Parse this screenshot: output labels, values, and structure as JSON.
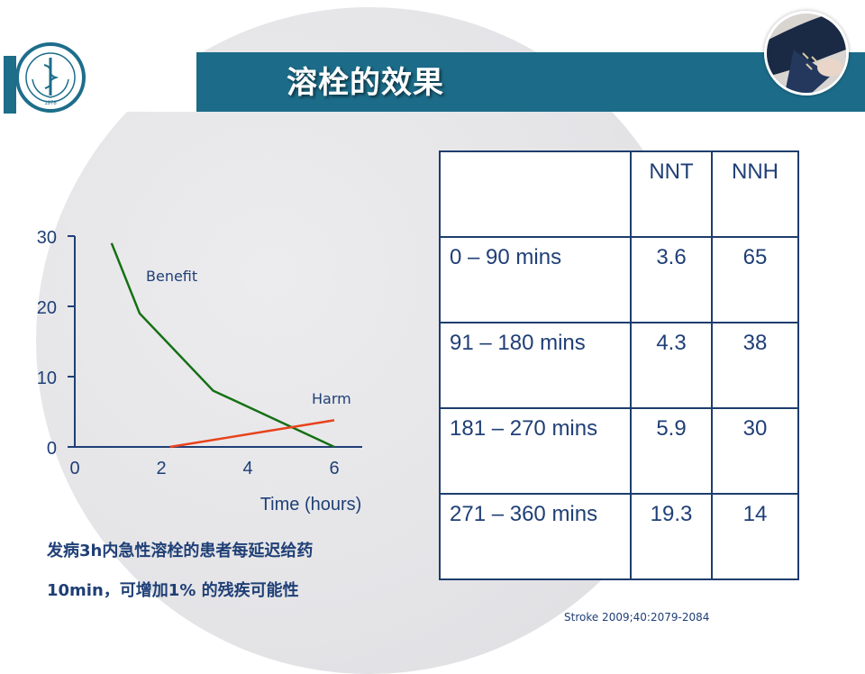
{
  "slide": {
    "title": "溶栓的效果",
    "note_line1": "发病3h内急性溶栓的患者每延迟给药",
    "note_line2": "10min，可增加1% 的残疾可能性",
    "citation": "Stroke 2009;40:2079-2084"
  },
  "logo": {
    "year_text": "1978"
  },
  "colors": {
    "title_bar": "#1c6c89",
    "text": "#1f3f76",
    "benefit": "#157015",
    "harm": "#e8421c"
  },
  "chart_data": {
    "type": "line",
    "xlabel": "Time (hours)",
    "ylabel": "",
    "xlim": [
      0,
      6.5
    ],
    "ylim": [
      0,
      30
    ],
    "x_ticks": [
      "0",
      "2",
      "4",
      "6"
    ],
    "y_ticks": [
      "0",
      "10",
      "20",
      "30"
    ],
    "series": [
      {
        "name": "Benefit",
        "color": "#157015",
        "points": [
          [
            0.85,
            29
          ],
          [
            1.5,
            19
          ],
          [
            3.2,
            8
          ],
          [
            6.0,
            0
          ]
        ]
      },
      {
        "name": "Harm",
        "color": "#e8421c",
        "points": [
          [
            2.2,
            0
          ],
          [
            6.0,
            3.8
          ]
        ]
      }
    ]
  },
  "table": {
    "headers": [
      "",
      "NNT",
      "NNH"
    ],
    "rows": [
      [
        "0 – 90 mins",
        "3.6",
        "65"
      ],
      [
        "91 – 180 mins",
        "4.3",
        "38"
      ],
      [
        "181 – 270 mins",
        "5.9",
        "30"
      ],
      [
        "271 – 360 mins",
        "19.3",
        "14"
      ]
    ]
  }
}
